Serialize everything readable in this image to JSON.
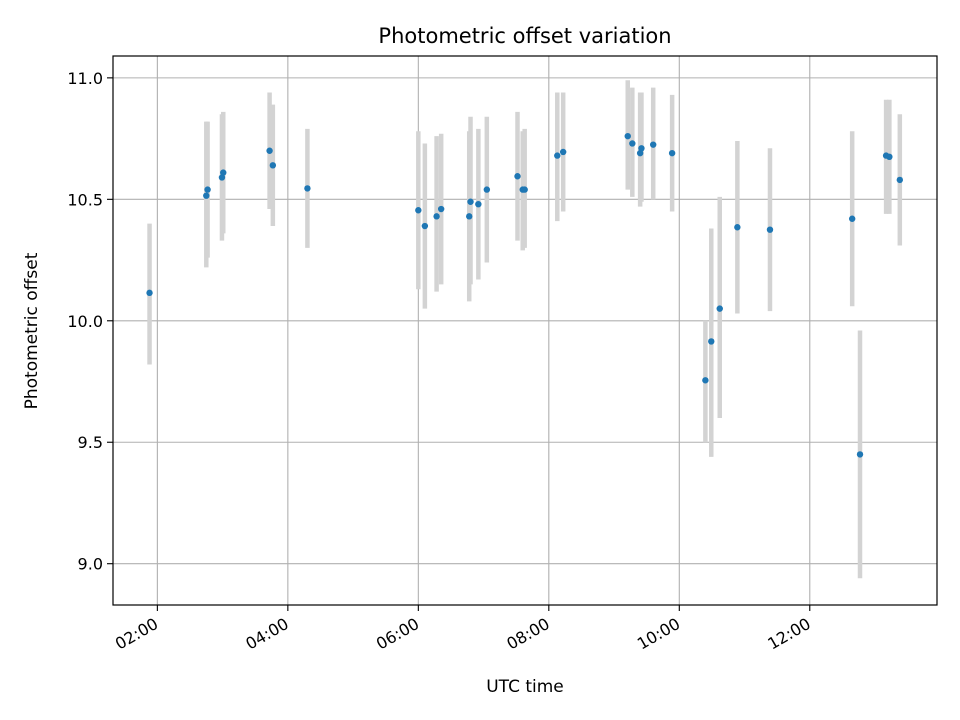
{
  "chart_data": {
    "type": "scatter",
    "title": "Photometric offset variation",
    "xlabel": "UTC time",
    "ylabel": "Photometric offset",
    "x_unit": "hours UTC",
    "xlim": [
      1.32,
      13.95
    ],
    "ylim": [
      8.83,
      11.09
    ],
    "x_ticks": [
      {
        "value": 2,
        "label": "02:00"
      },
      {
        "value": 4,
        "label": "04:00"
      },
      {
        "value": 6,
        "label": "06:00"
      },
      {
        "value": 8,
        "label": "08:00"
      },
      {
        "value": 10,
        "label": "10:00"
      },
      {
        "value": 12,
        "label": "12:00"
      }
    ],
    "y_ticks": [
      {
        "value": 9.0,
        "label": "9.0"
      },
      {
        "value": 9.5,
        "label": "9.5"
      },
      {
        "value": 10.0,
        "label": "10.0"
      },
      {
        "value": 10.5,
        "label": "10.5"
      },
      {
        "value": 11.0,
        "label": "11.0"
      }
    ],
    "grid": true,
    "colors": {
      "points": "#1f77b4",
      "error_bars": "#d3d3d3",
      "grid": "#b0b0b0"
    },
    "points": [
      {
        "x": 1.88,
        "y": 10.115,
        "ylo": 9.82,
        "yhi": 10.4
      },
      {
        "x": 2.75,
        "y": 10.515,
        "ylo": 10.22,
        "yhi": 10.82
      },
      {
        "x": 2.77,
        "y": 10.54,
        "ylo": 10.26,
        "yhi": 10.82
      },
      {
        "x": 2.99,
        "y": 10.59,
        "ylo": 10.33,
        "yhi": 10.85
      },
      {
        "x": 3.01,
        "y": 10.61,
        "ylo": 10.36,
        "yhi": 10.86
      },
      {
        "x": 3.72,
        "y": 10.7,
        "ylo": 10.46,
        "yhi": 10.94
      },
      {
        "x": 3.77,
        "y": 10.64,
        "ylo": 10.39,
        "yhi": 10.89
      },
      {
        "x": 4.3,
        "y": 10.545,
        "ylo": 10.3,
        "yhi": 10.79
      },
      {
        "x": 6.0,
        "y": 10.455,
        "ylo": 10.13,
        "yhi": 10.78
      },
      {
        "x": 6.1,
        "y": 10.39,
        "ylo": 10.05,
        "yhi": 10.73
      },
      {
        "x": 6.28,
        "y": 10.43,
        "ylo": 10.12,
        "yhi": 10.76
      },
      {
        "x": 6.35,
        "y": 10.46,
        "ylo": 10.15,
        "yhi": 10.77
      },
      {
        "x": 6.78,
        "y": 10.43,
        "ylo": 10.08,
        "yhi": 10.78
      },
      {
        "x": 6.8,
        "y": 10.49,
        "ylo": 10.15,
        "yhi": 10.84
      },
      {
        "x": 6.92,
        "y": 10.48,
        "ylo": 10.17,
        "yhi": 10.79
      },
      {
        "x": 7.05,
        "y": 10.54,
        "ylo": 10.24,
        "yhi": 10.84
      },
      {
        "x": 7.52,
        "y": 10.595,
        "ylo": 10.33,
        "yhi": 10.86
      },
      {
        "x": 7.6,
        "y": 10.54,
        "ylo": 10.29,
        "yhi": 10.78
      },
      {
        "x": 7.63,
        "y": 10.54,
        "ylo": 10.3,
        "yhi": 10.79
      },
      {
        "x": 8.13,
        "y": 10.68,
        "ylo": 10.41,
        "yhi": 10.94
      },
      {
        "x": 8.22,
        "y": 10.695,
        "ylo": 10.45,
        "yhi": 10.94
      },
      {
        "x": 9.21,
        "y": 10.76,
        "ylo": 10.54,
        "yhi": 10.99
      },
      {
        "x": 9.28,
        "y": 10.73,
        "ylo": 10.51,
        "yhi": 10.96
      },
      {
        "x": 9.4,
        "y": 10.69,
        "ylo": 10.47,
        "yhi": 10.94
      },
      {
        "x": 9.42,
        "y": 10.71,
        "ylo": 10.49,
        "yhi": 10.94
      },
      {
        "x": 9.6,
        "y": 10.725,
        "ylo": 10.5,
        "yhi": 10.96
      },
      {
        "x": 9.89,
        "y": 10.69,
        "ylo": 10.45,
        "yhi": 10.93
      },
      {
        "x": 10.4,
        "y": 9.755,
        "ylo": 9.5,
        "yhi": 10.0
      },
      {
        "x": 10.49,
        "y": 9.915,
        "ylo": 9.44,
        "yhi": 10.38
      },
      {
        "x": 10.62,
        "y": 10.05,
        "ylo": 9.6,
        "yhi": 10.51
      },
      {
        "x": 10.89,
        "y": 10.385,
        "ylo": 10.03,
        "yhi": 10.74
      },
      {
        "x": 11.39,
        "y": 10.375,
        "ylo": 10.04,
        "yhi": 10.71
      },
      {
        "x": 12.65,
        "y": 10.42,
        "ylo": 10.06,
        "yhi": 10.78
      },
      {
        "x": 12.77,
        "y": 9.45,
        "ylo": 8.94,
        "yhi": 9.96
      },
      {
        "x": 13.17,
        "y": 10.68,
        "ylo": 10.44,
        "yhi": 10.91
      },
      {
        "x": 13.22,
        "y": 10.675,
        "ylo": 10.44,
        "yhi": 10.91
      },
      {
        "x": 13.38,
        "y": 10.58,
        "ylo": 10.31,
        "yhi": 10.85
      }
    ]
  }
}
